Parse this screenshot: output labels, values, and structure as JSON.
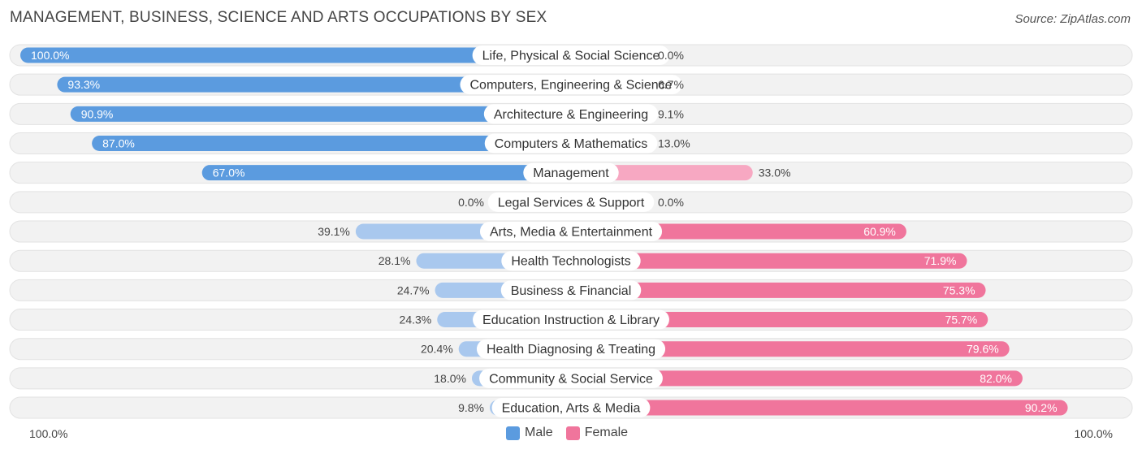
{
  "title": "MANAGEMENT, BUSINESS, SCIENCE AND ARTS OCCUPATIONS BY SEX",
  "source": "Source: ZipAtlas.com",
  "axis": {
    "left_label": "100.0%",
    "right_label": "100.0%"
  },
  "legend": {
    "male": "Male",
    "female": "Female"
  },
  "colors": {
    "male_strong": "#5b9bdf",
    "male_light": "#a9c8ee",
    "female_strong": "#f0759c",
    "female_light": "#f7a8c2",
    "row_bg": "#f2f2f2"
  },
  "chart_data": {
    "type": "bar",
    "title": "MANAGEMENT, BUSINESS, SCIENCE AND ARTS OCCUPATIONS BY SEX",
    "categories": [
      "Life, Physical & Social Science",
      "Computers, Engineering & Science",
      "Architecture & Engineering",
      "Computers & Mathematics",
      "Management",
      "Legal Services & Support",
      "Arts, Media & Entertainment",
      "Health Technologists",
      "Business & Financial",
      "Education Instruction & Library",
      "Health Diagnosing & Treating",
      "Community & Social Service",
      "Education, Arts & Media"
    ],
    "series": [
      {
        "name": "Male",
        "values": [
          100.0,
          93.3,
          90.9,
          87.0,
          67.0,
          0.0,
          39.1,
          28.1,
          24.7,
          24.3,
          20.4,
          18.0,
          9.8
        ],
        "labels": [
          "100.0%",
          "93.3%",
          "90.9%",
          "87.0%",
          "67.0%",
          "0.0%",
          "39.1%",
          "28.1%",
          "24.7%",
          "24.3%",
          "20.4%",
          "18.0%",
          "9.8%"
        ]
      },
      {
        "name": "Female",
        "values": [
          0.0,
          6.7,
          9.1,
          13.0,
          33.0,
          0.0,
          60.9,
          71.9,
          75.3,
          75.7,
          79.6,
          82.0,
          90.2
        ],
        "labels": [
          "0.0%",
          "6.7%",
          "9.1%",
          "13.0%",
          "33.0%",
          "0.0%",
          "60.9%",
          "71.9%",
          "75.3%",
          "75.7%",
          "79.6%",
          "82.0%",
          "90.2%"
        ]
      }
    ],
    "xlim": [
      -100,
      100
    ],
    "legend_position": "bottom-center"
  }
}
